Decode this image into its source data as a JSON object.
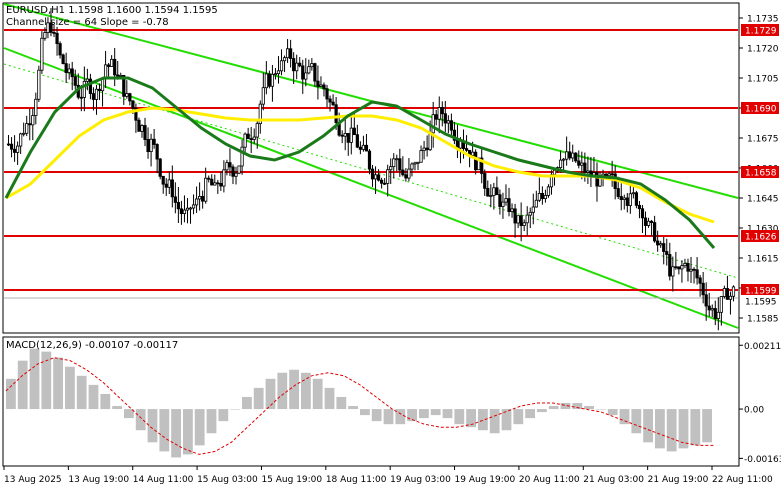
{
  "chart_data": {
    "type": "candlestick",
    "symbol_line": "EURUSD,H1  1.1598 1.1600 1.1594 1.1595",
    "channel_info": "Channel size = 64 Slope = -0.78",
    "price_axis": {
      "range": [
        1.1578,
        1.1742
      ],
      "ticks": [
        "1.1735",
        "1.1720",
        "1.1705",
        "1.1690",
        "1.1675",
        "1.1660",
        "1.1645",
        "1.1630",
        "1.1615",
        "1.1600",
        "1.1585"
      ]
    },
    "time_axis": {
      "labels": [
        "13 Aug 2025",
        "13 Aug 19:00",
        "14 Aug 11:00",
        "15 Aug 03:00",
        "15 Aug 19:00",
        "18 Aug 11:00",
        "19 Aug 03:00",
        "19 Aug 19:00",
        "20 Aug 11:00",
        "21 Aug 03:00",
        "21 Aug 19:00",
        "22 Aug 11:00"
      ]
    },
    "levels": [
      {
        "value": 1.1729,
        "label": "1.1729",
        "color": "#e00000"
      },
      {
        "value": 1.169,
        "label": "1.1690",
        "color": "#e00000"
      },
      {
        "value": 1.1658,
        "label": "1.1658",
        "color": "#e00000"
      },
      {
        "value": 1.1626,
        "label": "1.1626",
        "color": "#e00000"
      },
      {
        "value": 1.1599,
        "label": "1.1599",
        "color": "#e00000"
      }
    ],
    "current_price": {
      "value": 1.1595,
      "label": "1.1595"
    },
    "channel": {
      "color": "#22dd00",
      "upper": [
        [
          0,
          1.1742
        ],
        [
          1,
          1.1645
        ]
      ],
      "middle": [
        [
          0,
          1.1712
        ],
        [
          1,
          1.1605
        ]
      ],
      "lower": [
        [
          0,
          1.172
        ],
        [
          1,
          1.158
        ]
      ]
    },
    "close_series": [
      1.1672,
      1.168,
      1.169,
      1.172,
      1.1732,
      1.1715,
      1.1705,
      1.1698,
      1.1702,
      1.1697,
      1.1712,
      1.171,
      1.17,
      1.169,
      1.168,
      1.1672,
      1.166,
      1.165,
      1.164,
      1.1635,
      1.1642,
      1.165,
      1.1648,
      1.1655,
      1.166,
      1.1668,
      1.1678,
      1.1692,
      1.1705,
      1.1712,
      1.1715,
      1.171,
      1.1705,
      1.1706,
      1.17,
      1.169,
      1.168,
      1.1675,
      1.1668,
      1.1662,
      1.1658,
      1.166,
      1.1665,
      1.1655,
      1.166,
      1.167,
      1.1682,
      1.1688,
      1.1683,
      1.1676,
      1.167,
      1.166,
      1.165,
      1.1645,
      1.164,
      1.1635,
      1.163,
      1.1638,
      1.1645,
      1.166,
      1.1668,
      1.1665,
      1.166,
      1.1656,
      1.1655,
      1.1652,
      1.165,
      1.165,
      1.1645,
      1.164,
      1.1628,
      1.1618,
      1.161,
      1.1607,
      1.1612,
      1.1605,
      1.1595,
      1.1588,
      1.1595,
      1.1598
    ],
    "ma_fast": {
      "color": "#1a7a1a",
      "values": [
        1.1645,
        1.1668,
        1.1688,
        1.17,
        1.1705,
        1.1705,
        1.17,
        1.169,
        1.168,
        1.1672,
        1.1666,
        1.1664,
        1.1668,
        1.1676,
        1.1686,
        1.1693,
        1.1691,
        1.1684,
        1.1677,
        1.1672,
        1.1668,
        1.1664,
        1.1661,
        1.1658,
        1.1656,
        1.1655,
        1.1652,
        1.1644,
        1.1634,
        1.162
      ]
    },
    "ma_slow": {
      "color": "#ffee00",
      "values": [
        1.1645,
        1.1652,
        1.1664,
        1.1676,
        1.1684,
        1.1688,
        1.169,
        1.1689,
        1.1687,
        1.1685,
        1.1684,
        1.1684,
        1.1684,
        1.1685,
        1.1686,
        1.1686,
        1.1684,
        1.168,
        1.1673,
        1.1666,
        1.1661,
        1.1658,
        1.1656,
        1.1656,
        1.1656,
        1.1654,
        1.165,
        1.1643,
        1.1637,
        1.1633
      ]
    },
    "macd": {
      "label": "MACD(12,26,9) -0.00107 -0.00117",
      "range": [
        -0.00185,
        0.00235
      ],
      "ticks": [
        "0.00211",
        "0.00",
        "-0.00163"
      ],
      "histogram": [
        0.001,
        0.0016,
        0.002,
        0.0019,
        0.0017,
        0.0014,
        0.0011,
        0.0008,
        0.0005,
        0.0001,
        -0.0003,
        -0.0007,
        -0.0011,
        -0.0014,
        -0.0016,
        -0.0015,
        -0.0012,
        -0.0008,
        -0.0004,
        0.0,
        0.0004,
        0.0007,
        0.001,
        0.0012,
        0.0013,
        0.0012,
        0.001,
        0.0007,
        0.0004,
        0.0001,
        -0.0002,
        -0.0004,
        -0.0005,
        -0.0005,
        -0.0004,
        -0.0003,
        -0.0002,
        -0.0003,
        -0.0005,
        -0.0006,
        -0.0007,
        -0.0008,
        -0.0007,
        -0.0005,
        -0.0003,
        -0.0001,
        0.0001,
        0.0002,
        0.0002,
        0.0001,
        0.0,
        -0.0002,
        -0.0005,
        -0.0008,
        -0.0011,
        -0.0013,
        -0.0014,
        -0.0013,
        -0.0012,
        -0.0011
      ],
      "signal": [
        0.0006,
        0.0011,
        0.0015,
        0.0017,
        0.0016,
        0.0013,
        0.0009,
        0.0004,
        -0.0001,
        -0.0006,
        -0.001,
        -0.0013,
        -0.0015,
        -0.0014,
        -0.0011,
        -0.0006,
        -0.0001,
        0.0004,
        0.0008,
        0.0011,
        0.0012,
        0.0011,
        0.0008,
        0.0004,
        0.0,
        -0.0003,
        -0.0005,
        -0.0006,
        -0.0006,
        -0.0005,
        -0.0003,
        -0.0001,
        0.0001,
        0.0002,
        0.0002,
        0.0001,
        0.0,
        -0.0001,
        -0.0003,
        -0.0005,
        -0.0007,
        -0.0009,
        -0.0011,
        -0.0012,
        -0.0012
      ],
      "signal_color": "#e00000",
      "hist_color": "#c0c0c0"
    }
  }
}
